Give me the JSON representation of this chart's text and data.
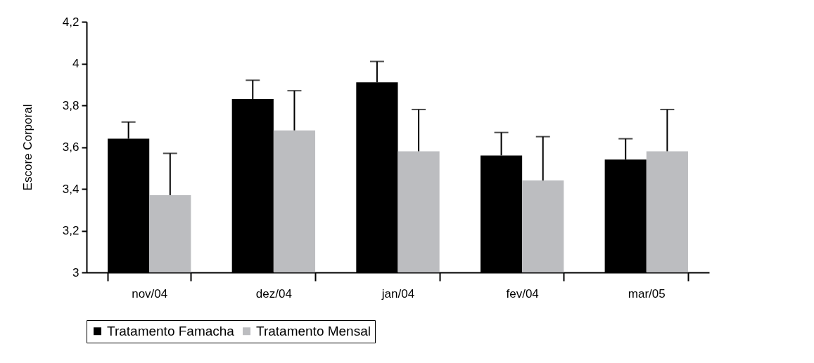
{
  "chart_data": {
    "type": "bar",
    "ylabel": "Escore Corporal",
    "categories": [
      "nov/04",
      "dez/04",
      "jan/04",
      "fev/04",
      "mar/05"
    ],
    "series": [
      {
        "name": "Tratamento Famacha",
        "color": "#000000",
        "values": [
          3.64,
          3.83,
          3.91,
          3.56,
          3.54
        ],
        "errors": [
          [
            3.64,
            3.72
          ],
          [
            3.83,
            3.92
          ],
          [
            3.91,
            4.01
          ],
          [
            3.56,
            3.67
          ],
          [
            3.54,
            3.64
          ]
        ]
      },
      {
        "name": "Tratamento Mensal",
        "color": "#bcbdc0",
        "values": [
          3.37,
          3.68,
          3.58,
          3.44,
          3.58
        ],
        "errors": [
          [
            3.37,
            3.57
          ],
          [
            3.68,
            3.87
          ],
          [
            3.58,
            3.78
          ],
          [
            3.44,
            3.65
          ],
          [
            3.58,
            3.78
          ]
        ]
      }
    ],
    "ylim": [
      3,
      4.2
    ],
    "yticks": [
      3,
      {
        "value": 3.2,
        "label": "3,2"
      },
      {
        "value": 3.4,
        "label": "3,4"
      },
      {
        "value": 3.6,
        "label": "3,6"
      },
      {
        "value": 3.8,
        "label": "3,8"
      },
      4,
      {
        "value": 4.2,
        "label": "4,2"
      }
    ],
    "grid": false,
    "legend": "bottom"
  }
}
